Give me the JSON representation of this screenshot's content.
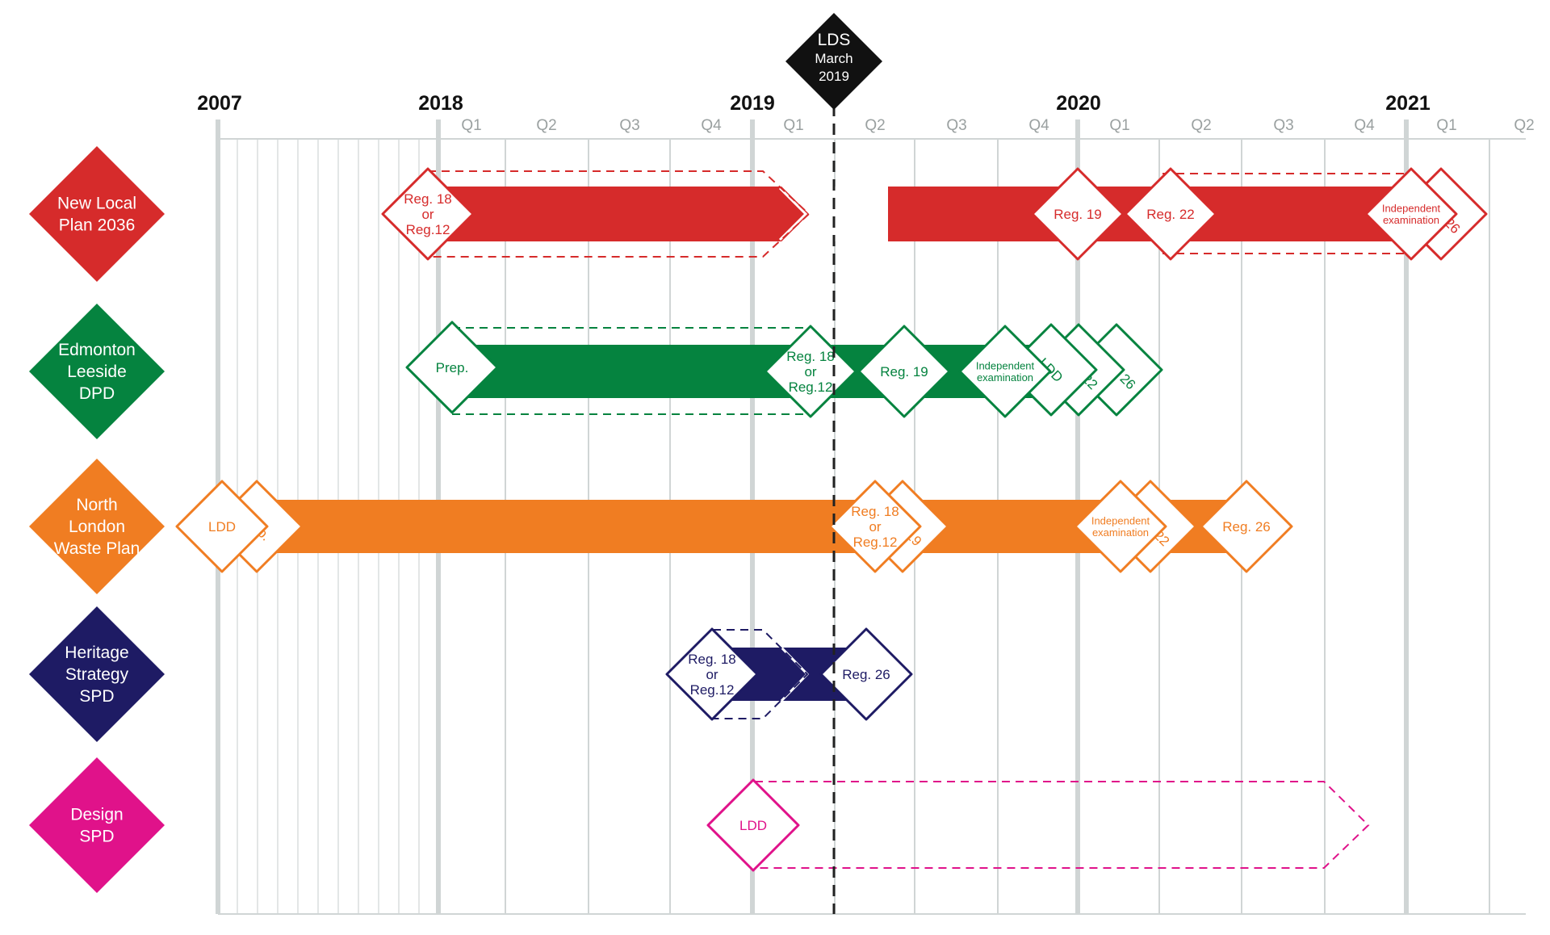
{
  "colors": {
    "red": "#d62b2b",
    "green": "#05833f",
    "orange": "#f07d22",
    "navy": "#1e1b64",
    "pink": "#e0128a",
    "grid": "#d0d5d5",
    "black": "#111111"
  },
  "marker": {
    "l1": "LDS",
    "l2": "March",
    "l3": "2019"
  },
  "years": [
    "2007",
    "2018",
    "2019",
    "2020",
    "2021"
  ],
  "quarters": [
    "Q1",
    "Q2",
    "Q3",
    "Q4",
    "Q1",
    "Q2",
    "Q3",
    "Q4",
    "Q1",
    "Q2",
    "Q3",
    "Q4",
    "Q1",
    "Q2"
  ],
  "rows": [
    {
      "name": "new-local-plan",
      "label": [
        "New Local",
        "Plan 2036"
      ],
      "color": "red",
      "milestones": [
        {
          "text": [
            "Reg. 18",
            "or",
            "Reg.12"
          ]
        },
        {
          "text": [
            "Reg. 19"
          ]
        },
        {
          "text": [
            "Reg. 22"
          ]
        },
        {
          "text": [
            "Independent",
            "examination"
          ]
        },
        {
          "text": [
            "Reg. 26"
          ]
        }
      ]
    },
    {
      "name": "edmonton-leeside-dpd",
      "label": [
        "Edmonton",
        "Leeside",
        "DPD"
      ],
      "color": "green",
      "milestones": [
        {
          "text": [
            "Prep."
          ]
        },
        {
          "text": [
            "Reg. 18",
            "or",
            "Reg.12"
          ]
        },
        {
          "text": [
            "Reg. 19"
          ]
        },
        {
          "text": [
            "Independent",
            "examination"
          ]
        },
        {
          "text": [
            "LDD"
          ]
        },
        {
          "text": [
            "Reg. 22"
          ]
        },
        {
          "text": [
            "Reg. 26"
          ]
        }
      ]
    },
    {
      "name": "north-london-waste-plan",
      "label": [
        "North",
        "London",
        "Waste Plan"
      ],
      "color": "orange",
      "milestones": [
        {
          "text": [
            "LDD"
          ]
        },
        {
          "text": [
            "Prep."
          ]
        },
        {
          "text": [
            "Reg. 18",
            "or",
            "Reg.12"
          ]
        },
        {
          "text": [
            "Reg. 19"
          ]
        },
        {
          "text": [
            "Independent",
            "examination"
          ]
        },
        {
          "text": [
            "Reg. 22"
          ]
        },
        {
          "text": [
            "Reg. 26"
          ]
        }
      ]
    },
    {
      "name": "heritage-strategy-spd",
      "label": [
        "Heritage",
        "Strategy",
        "SPD"
      ],
      "color": "navy",
      "milestones": [
        {
          "text": [
            "Reg. 18",
            "or",
            "Reg.12"
          ]
        },
        {
          "text": [
            "Reg. 26"
          ]
        }
      ]
    },
    {
      "name": "design-spd",
      "label": [
        "Design",
        "SPD"
      ],
      "color": "pink",
      "milestones": [
        {
          "text": [
            "LDD"
          ]
        }
      ]
    }
  ]
}
